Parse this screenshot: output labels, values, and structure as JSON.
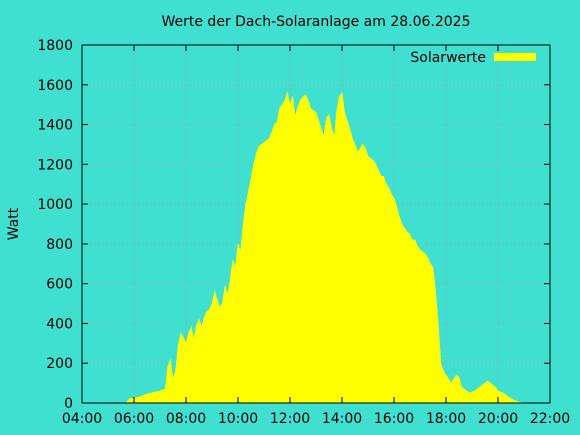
{
  "chart_data": {
    "type": "area",
    "title": "Werte der Dach-Solaranlage am 28.06.2025",
    "xlabel": "",
    "ylabel": "Watt",
    "x_unit": "time of day (hours)",
    "xlim": [
      4,
      22
    ],
    "ylim": [
      0,
      1800
    ],
    "x_ticks": [
      "04:00",
      "06:00",
      "08:00",
      "10:00",
      "12:00",
      "14:00",
      "16:00",
      "18:00",
      "20:00",
      "22:00"
    ],
    "y_ticks": [
      "0",
      "200",
      "400",
      "600",
      "800",
      "1000",
      "1200",
      "1400",
      "1600",
      "1800"
    ],
    "grid": true,
    "legend_position": "top-right",
    "colors": {
      "background": "#40e0d0",
      "series": "#ffff00",
      "grid": "#a0a0a0",
      "axis": "#000000"
    },
    "series": [
      {
        "name": "Solarwerte",
        "color": "#ffff00",
        "x": [
          5.7,
          5.8,
          6.0,
          6.2,
          6.5,
          6.8,
          7.0,
          7.2,
          7.3,
          7.4,
          7.5,
          7.6,
          7.7,
          7.8,
          7.9,
          8.0,
          8.1,
          8.2,
          8.3,
          8.4,
          8.5,
          8.6,
          8.7,
          8.8,
          8.9,
          9.0,
          9.1,
          9.2,
          9.3,
          9.4,
          9.5,
          9.6,
          9.7,
          9.8,
          9.9,
          10.0,
          10.1,
          10.2,
          10.3,
          10.4,
          10.5,
          10.6,
          10.7,
          10.8,
          10.9,
          11.0,
          11.1,
          11.2,
          11.3,
          11.4,
          11.5,
          11.6,
          11.7,
          11.8,
          11.9,
          12.0,
          12.1,
          12.2,
          12.3,
          12.4,
          12.5,
          12.6,
          12.7,
          12.8,
          12.9,
          13.0,
          13.1,
          13.2,
          13.3,
          13.4,
          13.5,
          13.6,
          13.7,
          13.8,
          13.9,
          14.0,
          14.1,
          14.2,
          14.3,
          14.4,
          14.5,
          14.6,
          14.7,
          14.8,
          14.9,
          15.0,
          15.1,
          15.2,
          15.3,
          15.4,
          15.5,
          15.6,
          15.7,
          15.8,
          15.9,
          16.0,
          16.1,
          16.2,
          16.3,
          16.4,
          16.5,
          16.6,
          16.7,
          16.8,
          16.9,
          17.0,
          17.1,
          17.2,
          17.3,
          17.4,
          17.5,
          17.6,
          17.7,
          17.8,
          17.9,
          18.0,
          18.1,
          18.2,
          18.3,
          18.4,
          18.5,
          18.6,
          18.7,
          18.8,
          18.9,
          19.0,
          19.1,
          19.2,
          19.3,
          19.4,
          19.5,
          19.6,
          19.7,
          19.8,
          19.9,
          20.0,
          20.2,
          20.4,
          20.6,
          20.8,
          21.0,
          21.2
        ],
        "values": [
          0,
          20,
          25,
          30,
          45,
          55,
          60,
          70,
          180,
          220,
          120,
          160,
          290,
          350,
          330,
          300,
          350,
          380,
          320,
          390,
          420,
          380,
          430,
          460,
          470,
          500,
          560,
          520,
          480,
          500,
          590,
          540,
          620,
          720,
          680,
          800,
          760,
          900,
          1000,
          1060,
          1130,
          1200,
          1250,
          1290,
          1300,
          1310,
          1320,
          1330,
          1360,
          1400,
          1410,
          1480,
          1500,
          1520,
          1560,
          1500,
          1540,
          1440,
          1490,
          1520,
          1540,
          1550,
          1520,
          1480,
          1470,
          1460,
          1420,
          1380,
          1340,
          1430,
          1450,
          1380,
          1340,
          1470,
          1540,
          1560,
          1460,
          1420,
          1380,
          1330,
          1300,
          1260,
          1280,
          1300,
          1280,
          1240,
          1230,
          1220,
          1200,
          1170,
          1140,
          1140,
          1100,
          1080,
          1050,
          1030,
          990,
          940,
          900,
          880,
          860,
          850,
          820,
          820,
          790,
          770,
          760,
          750,
          730,
          700,
          680,
          560,
          400,
          200,
          160,
          140,
          120,
          100,
          120,
          140,
          130,
          80,
          70,
          60,
          50,
          55,
          60,
          70,
          80,
          90,
          100,
          110,
          100,
          90,
          80,
          60,
          50,
          30,
          15,
          5,
          0,
          0
        ]
      }
    ]
  }
}
